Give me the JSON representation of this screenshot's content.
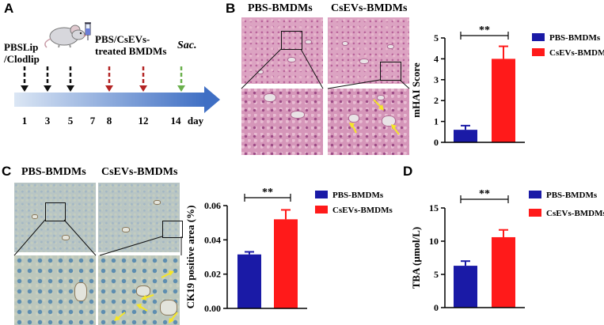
{
  "panels": {
    "a": "A",
    "b": "B",
    "c": "C",
    "d": "D"
  },
  "timeline": {
    "left_label_1": "PBSLip",
    "left_label_2": "/Clodlip",
    "treat_label_1": "PBS/CsEVs-",
    "treat_label_2": "treated BMDMs",
    "sac_label": "Sac.",
    "days": [
      "1",
      "3",
      "5",
      "7",
      "8",
      "12",
      "14"
    ],
    "day_unit": "day",
    "colors": {
      "black": "#111111",
      "red": "#b32424",
      "green": "#6ab04c",
      "bar_start": "#dbe6f4",
      "bar_end": "#3f6fc4"
    }
  },
  "micro_b": {
    "header_pbs": "PBS-BMDMs",
    "header_csevs": "CsEVs-BMDMs"
  },
  "micro_c": {
    "header_pbs": "PBS-BMDMs",
    "header_csevs": "CsEVs-BMDMs"
  },
  "colors": {
    "pbs": "#1a1aa6",
    "csevs": "#ff1a1a",
    "arrow": "#f5e628"
  },
  "chart_data": [
    {
      "panel": "B",
      "type": "bar",
      "categories": [
        "PBS-BMDMs",
        "CsEVs-BMDMs"
      ],
      "values": [
        0.6,
        4.0
      ],
      "errors": [
        0.2,
        0.6
      ],
      "ylabel": "mHAI Score",
      "ylim": [
        0,
        5
      ],
      "yticks": [
        "0",
        "1",
        "2",
        "3",
        "4",
        "5"
      ],
      "significance": "**",
      "legend": [
        "PBS-BMDMs",
        "CsEVs-BMDMs"
      ]
    },
    {
      "panel": "C",
      "type": "bar",
      "categories": [
        "PBS-BMDMs",
        "CsEVs-BMDMs"
      ],
      "values": [
        0.0315,
        0.052
      ],
      "errors": [
        0.0015,
        0.0055
      ],
      "ylabel": "CK19 positive area (%)",
      "ylim": [
        0,
        0.06
      ],
      "yticks": [
        "0.00",
        "0.02",
        "0.04",
        "0.06"
      ],
      "significance": "**",
      "legend": [
        "PBS-BMDMs",
        "CsEVs-BMDMs"
      ]
    },
    {
      "panel": "D",
      "type": "bar",
      "categories": [
        "PBS-BMDMs",
        "CsEVs-BMDMs"
      ],
      "values": [
        6.3,
        10.6
      ],
      "errors": [
        0.7,
        1.1
      ],
      "ylabel": "TBA (μmol/L)",
      "ylim": [
        0,
        15
      ],
      "yticks": [
        "0",
        "5",
        "10",
        "15"
      ],
      "significance": "**",
      "legend": [
        "PBS-BMDMs",
        "CsEVs-BMDMs"
      ]
    }
  ]
}
